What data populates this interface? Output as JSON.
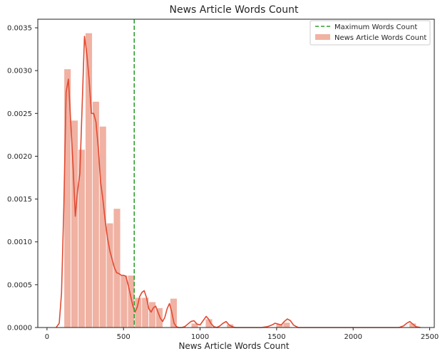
{
  "chart_data": {
    "type": "bar",
    "title": "News Article Words Count",
    "xlabel": "News Article Words Count",
    "ylabel": "",
    "xlim": [
      -60,
      2530
    ],
    "ylim": [
      0,
      0.0036
    ],
    "xticks": [
      0,
      500,
      1000,
      1500,
      2000,
      2500
    ],
    "xtick_labels": [
      "0",
      "500",
      "1000",
      "1500",
      "2000",
      "2500"
    ],
    "yticks": [
      0.0,
      0.0005,
      0.001,
      0.0015,
      0.002,
      0.0025,
      0.003,
      0.0035
    ],
    "ytick_labels": [
      "0.0000",
      "0.0005",
      "0.0010",
      "0.0015",
      "0.0020",
      "0.0025",
      "0.0030",
      "0.0035"
    ],
    "grid": false,
    "legend_position": "top-right",
    "colors": {
      "hist_fill": "#f0b2a3",
      "kde_line": "#e24a33",
      "vline": "#2ca02c",
      "axes_edge": "#222222"
    },
    "histogram": {
      "name": "News Article Words Count",
      "bin_width": 46.2,
      "bins": [
        {
          "x": 111,
          "density": 0.00302
        },
        {
          "x": 157,
          "density": 0.00242
        },
        {
          "x": 203,
          "density": 0.00208
        },
        {
          "x": 250,
          "density": 0.00344
        },
        {
          "x": 296,
          "density": 0.00264
        },
        {
          "x": 342,
          "density": 0.00235
        },
        {
          "x": 388,
          "density": 0.00122
        },
        {
          "x": 434,
          "density": 0.00139
        },
        {
          "x": 480,
          "density": 0.00061
        },
        {
          "x": 527,
          "density": 0.00061
        },
        {
          "x": 573,
          "density": 0.00035
        },
        {
          "x": 619,
          "density": 0.00035
        },
        {
          "x": 665,
          "density": 0.0003
        },
        {
          "x": 711,
          "density": 0.00023
        },
        {
          "x": 757,
          "density": 0.0
        },
        {
          "x": 804,
          "density": 0.00034
        },
        {
          "x": 850,
          "density": 0.0
        },
        {
          "x": 896,
          "density": 0.0
        },
        {
          "x": 942,
          "density": 5e-05
        },
        {
          "x": 988,
          "density": 0.0
        },
        {
          "x": 1035,
          "density": 0.0001
        },
        {
          "x": 1081,
          "density": 0.0
        },
        {
          "x": 1127,
          "density": 0.0
        },
        {
          "x": 1173,
          "density": 4e-05
        },
        {
          "x": 1219,
          "density": 0.0
        },
        {
          "x": 1496,
          "density": 4e-05
        },
        {
          "x": 1542,
          "density": 6e-05
        },
        {
          "x": 2366,
          "density": 5e-05
        }
      ]
    },
    "kde": {
      "name": "",
      "x": [
        60,
        80,
        95,
        110,
        125,
        140,
        155,
        170,
        185,
        200,
        215,
        230,
        245,
        260,
        275,
        290,
        305,
        320,
        335,
        350,
        365,
        380,
        395,
        410,
        425,
        440,
        455,
        470,
        485,
        500,
        515,
        530,
        545,
        560,
        575,
        590,
        605,
        620,
        635,
        650,
        665,
        680,
        695,
        710,
        725,
        740,
        755,
        770,
        785,
        800,
        815,
        830,
        845,
        860,
        880,
        900,
        920,
        940,
        960,
        980,
        1000,
        1020,
        1040,
        1055,
        1070,
        1090,
        1110,
        1130,
        1150,
        1170,
        1190,
        1210,
        1230,
        1260,
        1300,
        1350,
        1400,
        1440,
        1470,
        1490,
        1510,
        1530,
        1550,
        1570,
        1590,
        1610,
        1640,
        1700,
        1800,
        1900,
        2000,
        2100,
        2200,
        2300,
        2330,
        2350,
        2370,
        2390,
        2410,
        2440
      ],
      "y": [
        0.0,
        5e-05,
        0.0004,
        0.0014,
        0.00275,
        0.0029,
        0.0024,
        0.0019,
        0.0013,
        0.0016,
        0.0018,
        0.0026,
        0.0034,
        0.0032,
        0.0029,
        0.0025,
        0.0025,
        0.0024,
        0.0021,
        0.0017,
        0.0015,
        0.00125,
        0.00105,
        0.0009,
        0.0008,
        0.0007,
        0.00064,
        0.00063,
        0.00061,
        0.00061,
        0.0006,
        0.0005,
        0.00038,
        0.00026,
        0.00018,
        0.00024,
        0.00036,
        0.00041,
        0.00043,
        0.00035,
        0.00022,
        0.00018,
        0.00023,
        0.00025,
        0.00018,
        0.00011,
        7e-05,
        0.00012,
        0.00022,
        0.00028,
        0.00018,
        5e-05,
        1e-05,
        0.0,
        0.0,
        1e-05,
        4e-05,
        7e-05,
        8e-05,
        4e-05,
        3e-05,
        8e-05,
        0.00013,
        0.0001,
        5e-05,
        1e-05,
        0.0,
        2e-05,
        5e-05,
        7e-05,
        3e-05,
        1e-05,
        0.0,
        0.0,
        0.0,
        0.0,
        0.0,
        1e-05,
        3e-05,
        5e-05,
        4e-05,
        3e-05,
        7e-05,
        0.0001,
        8e-05,
        3e-05,
        0.0,
        0.0,
        0.0,
        0.0,
        0.0,
        0.0,
        0.0,
        0.0,
        2e-05,
        5e-05,
        7e-05,
        4e-05,
        1e-05,
        0.0
      ]
    },
    "vline": {
      "name": "Maximum Words Count",
      "x": 570
    },
    "legend": [
      {
        "label": "Maximum Words Count",
        "kind": "dashed-line"
      },
      {
        "label": "News Article Words Count",
        "kind": "patch"
      }
    ]
  }
}
